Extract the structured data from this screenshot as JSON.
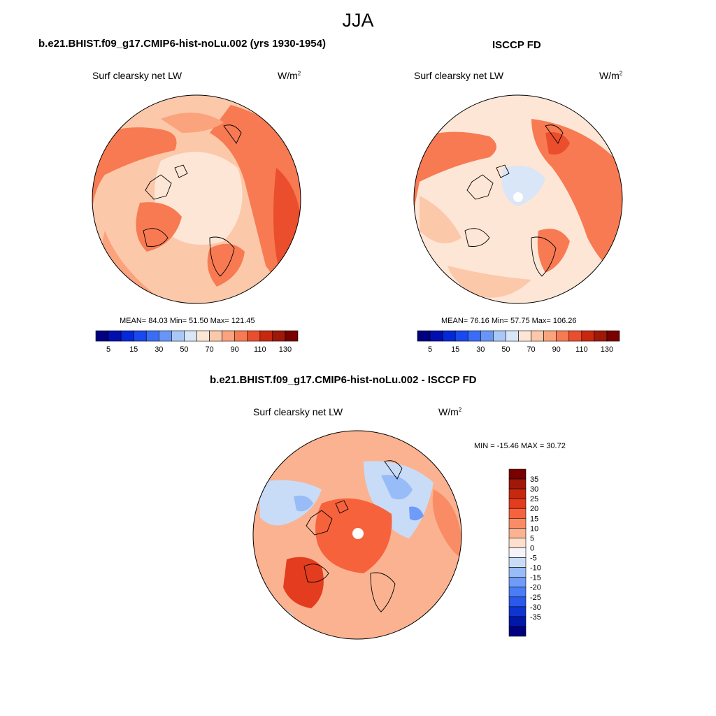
{
  "main_title": "JJA",
  "panels": [
    {
      "title": "b.e21.BHIST.f09_g17.CMIP6-hist-noLu.002 (yrs 1930-1954)",
      "subtitle": "Surf clearsky net LW",
      "units": "W/m",
      "units_sup": "2",
      "stats": "MEAN=  84.03  Min=  51.50  Max= 121.45"
    },
    {
      "title": "ISCCP FD",
      "subtitle": "Surf clearsky net LW",
      "units": "W/m",
      "units_sup": "2",
      "stats": "MEAN=  76.16  Min=  57.75  Max= 106.26"
    },
    {
      "title": "b.e21.BHIST.f09_g17.CMIP6-hist-noLu.002 - ISCCP FD",
      "subtitle": "Surf clearsky net LW",
      "units": "W/m",
      "units_sup": "2",
      "stats": "MIN = -15.46 MAX =  30.72"
    }
  ],
  "chart_data": [
    {
      "type": "heatmap",
      "projection": "north polar stereographic",
      "title": "b.e21.BHIST.f09_g17.CMIP6-hist-noLu.002 (yrs 1930-1954)",
      "variable": "Surf clearsky net LW",
      "units": "W/m2",
      "mean": 84.03,
      "min": 51.5,
      "max": 121.45,
      "colorbar": {
        "orientation": "horizontal",
        "levels": [
          5,
          10,
          15,
          20,
          30,
          40,
          50,
          60,
          70,
          80,
          90,
          100,
          110,
          120,
          130
        ],
        "tick_labels": [
          "5",
          "15",
          "30",
          "50",
          "70",
          "90",
          "110",
          "130"
        ],
        "colors": [
          "#000080",
          "#0010b0",
          "#0528d8",
          "#1848f0",
          "#3a6cf5",
          "#6896f8",
          "#a8c8f8",
          "#d8e6f8",
          "#fde6d6",
          "#fcc8aa",
          "#fba37d",
          "#f87a52",
          "#eb4e2c",
          "#c8280f",
          "#a01808",
          "#780000"
        ]
      }
    },
    {
      "type": "heatmap",
      "projection": "north polar stereographic",
      "title": "ISCCP FD",
      "variable": "Surf clearsky net LW",
      "units": "W/m2",
      "mean": 76.16,
      "min": 57.75,
      "max": 106.26,
      "colorbar": {
        "orientation": "horizontal",
        "levels": [
          5,
          10,
          15,
          20,
          30,
          40,
          50,
          60,
          70,
          80,
          90,
          100,
          110,
          120,
          130
        ],
        "tick_labels": [
          "5",
          "15",
          "30",
          "50",
          "70",
          "90",
          "110",
          "130"
        ],
        "colors": [
          "#000080",
          "#0010b0",
          "#0528d8",
          "#1848f0",
          "#3a6cf5",
          "#6896f8",
          "#a8c8f8",
          "#d8e6f8",
          "#fde6d6",
          "#fcc8aa",
          "#fba37d",
          "#f87a52",
          "#eb4e2c",
          "#c8280f",
          "#a01808",
          "#780000"
        ]
      }
    },
    {
      "type": "heatmap",
      "projection": "north polar stereographic",
      "title": "b.e21.BHIST.f09_g17.CMIP6-hist-noLu.002 - ISCCP FD",
      "variable": "Surf clearsky net LW",
      "units": "W/m2",
      "min": -15.46,
      "max": 30.72,
      "colorbar": {
        "orientation": "vertical",
        "labels": [
          "35",
          "30",
          "25",
          "20",
          "15",
          "10",
          "5",
          "0",
          "-5",
          "-10",
          "-15",
          "-20",
          "-25",
          "-30",
          "-35"
        ],
        "colors": [
          "#780000",
          "#a01808",
          "#c8280f",
          "#e43c1e",
          "#f6623c",
          "#f98c64",
          "#fbb290",
          "#fde0cc",
          "#f4f4fa",
          "#c8dcf8",
          "#98bcf8",
          "#6e9cf8",
          "#4a7cf6",
          "#2a58ec",
          "#1034d0",
          "#0018a8",
          "#000080"
        ]
      }
    }
  ]
}
